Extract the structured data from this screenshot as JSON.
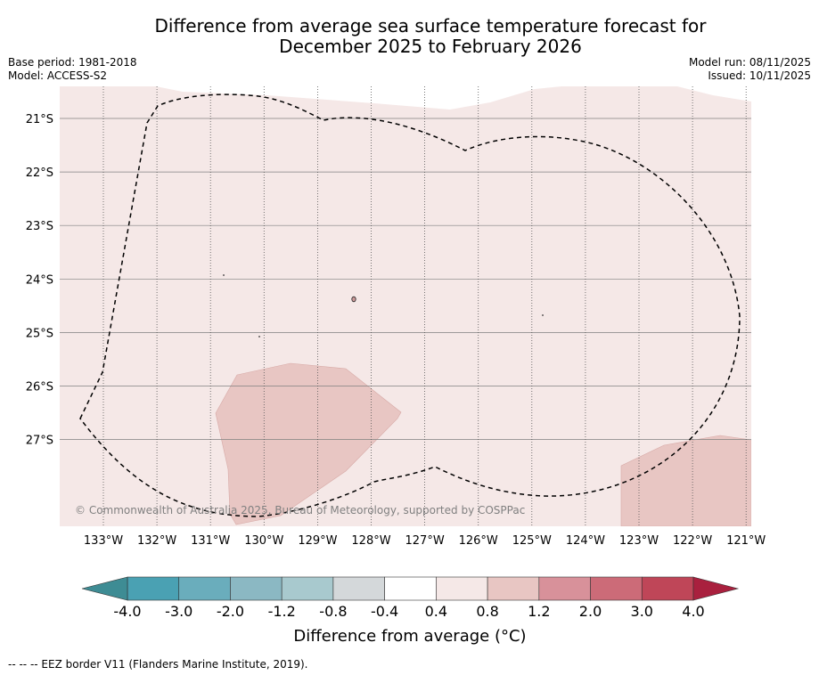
{
  "title": {
    "line1": "Difference from average sea surface temperature forecast for",
    "line2": "December 2025 to February 2026"
  },
  "meta_left": {
    "base_period": "Base period: 1981-2018",
    "model": "Model: ACCESS-S2"
  },
  "meta_right": {
    "model_run": "Model run: 08/11/2025",
    "issued": "Issued: 10/11/2025"
  },
  "copyright": "© Commonwealth of Australia 2025, Bureau of Meteorology, supported by COSPPac",
  "map": {
    "latitude_labels": [
      "21°S",
      "22°S",
      "23°S",
      "24°S",
      "25°S",
      "26°S",
      "27°S"
    ],
    "longitude_labels": [
      "133°W",
      "132°W",
      "131°W",
      "130°W",
      "129°W",
      "128°W",
      "127°W",
      "126°W",
      "125°W",
      "124°W",
      "123°W",
      "122°W",
      "121°W"
    ],
    "field_colors": {
      "anomaly_0.4_to_0.8": "#f5e8e7",
      "anomaly_0.8_to_1.2": "#e8c6c3"
    }
  },
  "colorbar": {
    "title": "Difference from average (°C)",
    "tick_labels": [
      "-4.0",
      "-3.0",
      "-2.0",
      "-1.2",
      "-0.8",
      "-0.4",
      "0.4",
      "0.8",
      "1.2",
      "2.0",
      "3.0",
      "4.0"
    ],
    "colors": [
      "#3e8c94",
      "#4aa1b3",
      "#6aadbc",
      "#8bb8c3",
      "#a8c9ce",
      "#d4d8da",
      "#ffffff",
      "#f5e8e7",
      "#e8c6c3",
      "#d8919a",
      "#cc6b78",
      "#bf4658",
      "#a9203e"
    ]
  },
  "footnote": "--  --  -- EEZ border V11 (Flanders Marine Institute, 2019)."
}
